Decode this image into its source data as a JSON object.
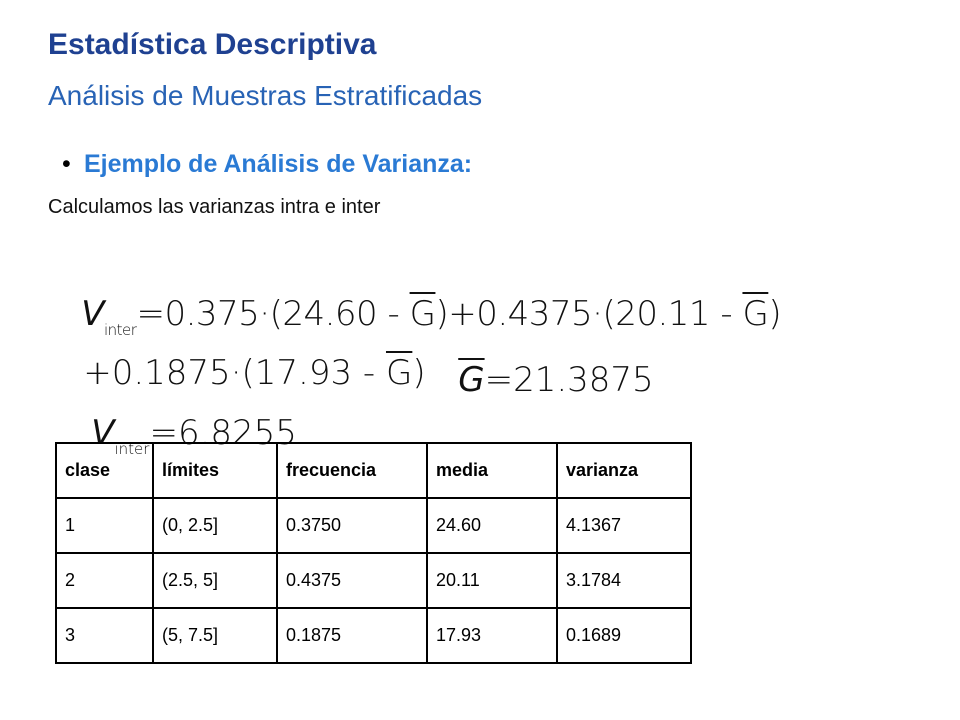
{
  "header": {
    "title": "Estadística Descriptiva",
    "subtitle": "Análisis de Muestras Estratificadas"
  },
  "bullet": "Ejemplo de Análisis de Varianza:",
  "intro": "Calculamos las varianzas intra e inter",
  "formulas": {
    "line1": [
      "V",
      "inter",
      "=0.375·(24.60 - ",
      "G",
      ")+0.4375·(20.11 - ",
      "G",
      ")"
    ],
    "line2": [
      "+0.1875·(17.93 - ",
      "G",
      ")"
    ],
    "gdef": [
      "G",
      "=21.3875"
    ],
    "result": [
      "V",
      "inter",
      "=6.8255"
    ]
  },
  "table": {
    "header": [
      "clase",
      "límites",
      "frecuencia",
      "media",
      "varianza"
    ],
    "rows": [
      [
        "1",
        "(0, 2.5]",
        "0.3750",
        "24.60",
        "4.1367"
      ],
      [
        "2",
        "(2.5, 5]",
        "0.4375",
        "20.11",
        "3.1784"
      ],
      [
        "3",
        "(5, 7.5]",
        "0.1875",
        "17.93",
        "0.1689"
      ]
    ]
  }
}
